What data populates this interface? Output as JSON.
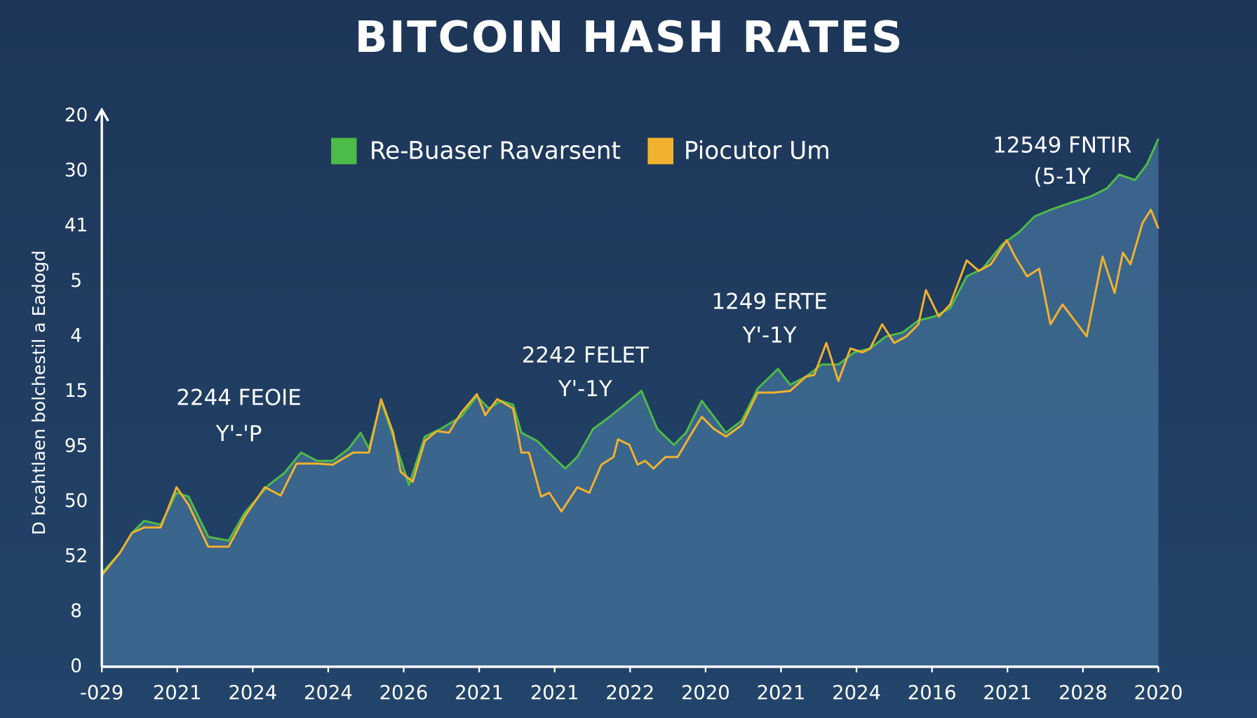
{
  "chart_data": {
    "type": "line",
    "title": "BITCOIN HASH RATES",
    "y_label": "D bcahtlaen bolchestil a Eadogd",
    "legend": "top",
    "grid": false,
    "area": true,
    "area_color": "#3d6990",
    "xlim": [
      0,
      14
    ],
    "xticks": [
      {
        "value": 0,
        "label": "-029"
      },
      {
        "value": 1,
        "label": "2021"
      },
      {
        "value": 2,
        "label": "2024"
      },
      {
        "value": 3,
        "label": "2024"
      },
      {
        "value": 4,
        "label": "2026"
      },
      {
        "value": 5,
        "label": "2021"
      },
      {
        "value": 6,
        "label": "2021"
      },
      {
        "value": 7,
        "label": "2022"
      },
      {
        "value": 8,
        "label": "2020"
      },
      {
        "value": 9,
        "label": "2021"
      },
      {
        "value": 10,
        "label": "2024"
      },
      {
        "value": 11,
        "label": "2016"
      },
      {
        "value": 12,
        "label": "2021"
      },
      {
        "value": 13,
        "label": "2028"
      },
      {
        "value": 14,
        "label": "2020"
      }
    ],
    "ylim": [
      0,
      100
    ],
    "yticks": [
      0,
      {
        "value": 10,
        "label": "8"
      },
      {
        "value": 20,
        "label": "52"
      },
      {
        "value": 30,
        "label": "50"
      },
      {
        "value": 40,
        "label": "95"
      },
      {
        "value": 50,
        "label": "15"
      },
      {
        "value": 60,
        "label": "4"
      },
      {
        "value": 70,
        "label": "5"
      },
      {
        "value": 80,
        "label": "41"
      },
      {
        "value": 90,
        "label": "30"
      },
      {
        "value": 100,
        "label": "20"
      }
    ],
    "annotations": [
      [
        "2244 FEOIE",
        "Y'-'P"
      ],
      [
        "2242 FELET",
        "Y'-1Y"
      ],
      [
        "1249 ERTE",
        "Y'-1Y"
      ],
      [
        "12549 FNTIR",
        "(5-1Y"
      ]
    ],
    "series": [
      {
        "name": "Re-Buaser Ravarsent",
        "color": "#4dbb47",
        "x": [
          0,
          0.24,
          0.4,
          0.56,
          0.78,
          0.99,
          1.15,
          1.41,
          1.68,
          1.89,
          2.21,
          2.42,
          2.64,
          2.85,
          3.06,
          3.27,
          3.43,
          3.54,
          3.7,
          3.86,
          4.07,
          4.28,
          4.49,
          4.76,
          4.97,
          5.13,
          5.29,
          5.45,
          5.56,
          5.77,
          5.98,
          6.14,
          6.3,
          6.51,
          6.73,
          6.99,
          7.15,
          7.36,
          7.58,
          7.74,
          7.95,
          8.11,
          8.27,
          8.48,
          8.69,
          8.96,
          9.12,
          9.33,
          9.54,
          9.76,
          9.97,
          10.18,
          10.39,
          10.61,
          10.82,
          11.03,
          11.24,
          11.46,
          11.67,
          11.93,
          12.15,
          12.36,
          12.57,
          12.78,
          13.1,
          13.32,
          13.48,
          13.69,
          13.85,
          14
        ],
        "values": [
          17,
          20.7,
          24.3,
          26.5,
          25.8,
          31.6,
          30.9,
          23.6,
          22.9,
          27.9,
          33,
          35.2,
          38.9,
          37.4,
          37.4,
          39.6,
          42.5,
          39.6,
          48.3,
          41.8,
          33,
          41.8,
          43.2,
          45.4,
          49.1,
          46.9,
          48.3,
          47.6,
          42.5,
          41,
          38.1,
          36,
          38.1,
          43.2,
          45.4,
          48.3,
          50.1,
          43.2,
          40.3,
          42.5,
          48.3,
          45.4,
          42.5,
          44.7,
          50.5,
          54.1,
          51.2,
          52.7,
          54.9,
          54.9,
          57.1,
          57.8,
          60,
          60.7,
          62.9,
          63.6,
          65.1,
          70.9,
          72.3,
          76.7,
          78.9,
          81.8,
          83,
          84,
          85.4,
          86.9,
          89.4,
          88.4,
          91.3,
          95.9
        ]
      },
      {
        "name": "Piocutor Um",
        "color": "#f2b12e",
        "x": [
          0,
          0.24,
          0.4,
          0.56,
          0.78,
          0.99,
          1.15,
          1.41,
          1.68,
          1.89,
          2.16,
          2.37,
          2.58,
          2.85,
          3.06,
          3.33,
          3.54,
          3.7,
          3.86,
          3.96,
          4.12,
          4.28,
          4.44,
          4.6,
          4.76,
          4.97,
          5.08,
          5.24,
          5.45,
          5.56,
          5.66,
          5.82,
          5.93,
          6.09,
          6.3,
          6.46,
          6.62,
          6.78,
          6.84,
          6.99,
          7.1,
          7.2,
          7.31,
          7.47,
          7.63,
          7.79,
          7.95,
          8.11,
          8.27,
          8.48,
          8.69,
          8.91,
          9.12,
          9.33,
          9.44,
          9.6,
          9.76,
          9.92,
          10.08,
          10.18,
          10.34,
          10.5,
          10.66,
          10.82,
          10.92,
          11.09,
          11.24,
          11.46,
          11.62,
          11.78,
          11.99,
          12.1,
          12.26,
          12.42,
          12.57,
          12.73,
          12.89,
          13.05,
          13.26,
          13.42,
          13.53,
          13.63,
          13.79,
          13.9,
          14
        ],
        "values": [
          16.6,
          20.7,
          24.3,
          25.3,
          25.3,
          32.6,
          29.4,
          21.8,
          21.8,
          27.2,
          32.6,
          31.1,
          36.9,
          36.9,
          36.7,
          38.9,
          38.9,
          48.6,
          42.5,
          35.4,
          33.6,
          41,
          42.8,
          42.5,
          46.1,
          49.5,
          45.7,
          48.6,
          46.9,
          38.9,
          38.9,
          30.9,
          31.6,
          28.2,
          32.6,
          31.6,
          36.7,
          38.1,
          41.3,
          40.3,
          36.7,
          37.4,
          36,
          38.1,
          38.1,
          41.8,
          45.4,
          43.2,
          41.8,
          43.9,
          49.8,
          49.8,
          50.1,
          52.7,
          53,
          58.8,
          51.9,
          57.8,
          57.1,
          57.8,
          62.2,
          58.8,
          60,
          62.2,
          68.4,
          63.6,
          65.8,
          73.8,
          71.9,
          73.1,
          77.5,
          74.5,
          70.9,
          72.3,
          62.2,
          65.8,
          62.9,
          60,
          74.5,
          67.9,
          75.2,
          73.1,
          80.6,
          83,
          79.6
        ]
      }
    ]
  }
}
